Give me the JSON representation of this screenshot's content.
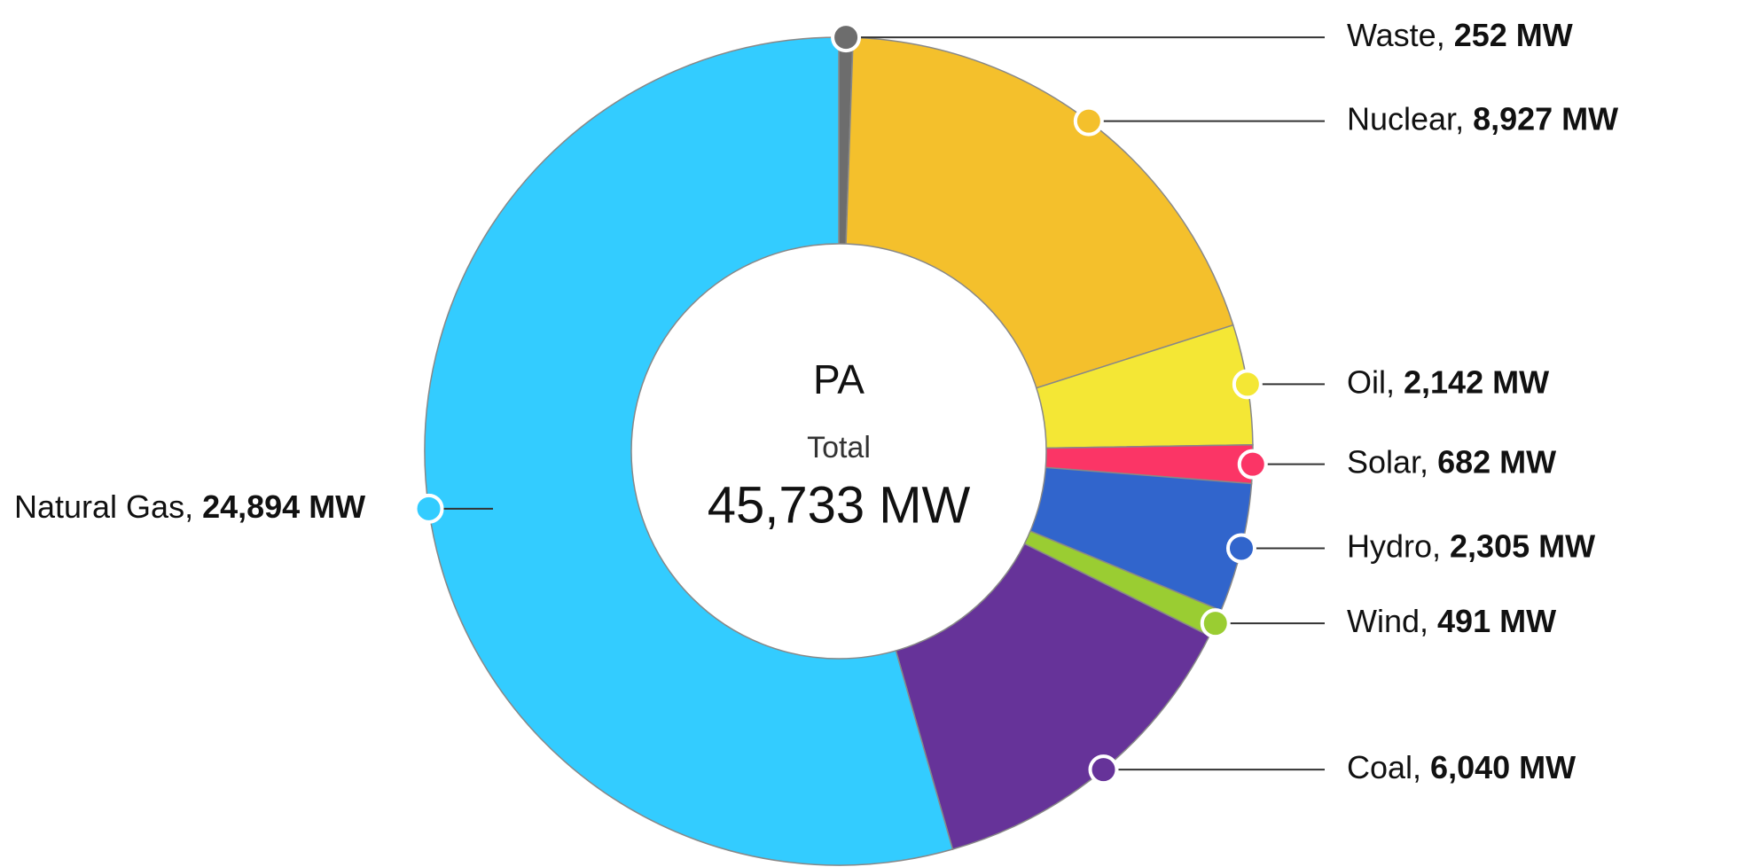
{
  "chart_data": {
    "type": "donut",
    "center": {
      "title": "PA",
      "subtitle": "Total",
      "total": "45,733 MW"
    },
    "categories": [
      "Waste,",
      "Nuclear,",
      "Oil,",
      "Solar,",
      "Hydro,",
      "Wind,",
      "Coal,",
      "Natural Gas,"
    ],
    "values": [
      252,
      8927,
      2142,
      682,
      2305,
      491,
      6040,
      24894
    ],
    "value_labels": [
      "252 MW",
      "8,927 MW",
      "2,142 MW",
      "682 MW",
      "2,305 MW",
      "491 MW",
      "6,040 MW",
      "24,894 MW"
    ],
    "colors": [
      "#6d6d6d",
      "#f4c02c",
      "#f4e735",
      "#fb3566",
      "#3165cc",
      "#9acd32",
      "#663399",
      "#33ccff"
    ]
  }
}
